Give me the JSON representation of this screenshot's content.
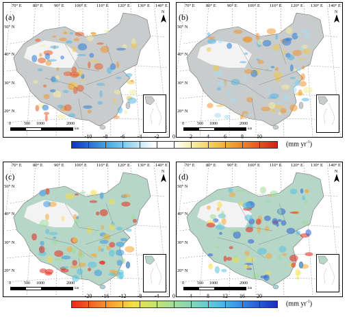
{
  "panels": {
    "a": {
      "label": "(a)"
    },
    "b": {
      "label": "(b)"
    },
    "c": {
      "label": "(c)"
    },
    "d": {
      "label": "(d)"
    }
  },
  "longitudes": [
    "70° E",
    "80° E",
    "90° E",
    "100° E",
    "110° E",
    "120° E",
    "130° E",
    "140° E"
  ],
  "latitudes": [
    "50° N",
    "40° N",
    "30° N",
    "20° N"
  ],
  "north_label": "N",
  "scale_bar": {
    "ticks": [
      "0",
      "500",
      "1000",
      "2000"
    ],
    "unit": "km"
  },
  "colorbar_top": {
    "ticks": [
      "-10",
      "-8",
      "-6",
      "-4",
      "-2",
      "0",
      "2",
      "4",
      "6",
      "8",
      "10"
    ],
    "unit": "(mm yr",
    "unit_exp": "-1",
    "unit_close": ")",
    "colors": [
      "#1030c8",
      "#2a7bd8",
      "#55b7e6",
      "#a6dcf0",
      "#ffffff",
      "#ffffff",
      "#f6eb9e",
      "#f2c648",
      "#f09530",
      "#e85c24",
      "#d41e16"
    ]
  },
  "colorbar_bottom": {
    "ticks": [
      "-20",
      "-16",
      "-12",
      "-8",
      "-4",
      "0",
      "4",
      "8",
      "12",
      "16",
      "20"
    ],
    "unit": "(mm yr",
    "unit_exp": "-1",
    "unit_close": ")",
    "colors": [
      "#e8281c",
      "#f06a28",
      "#f8a634",
      "#f4de46",
      "#c6e46e",
      "#9edc9a",
      "#7cd4bc",
      "#58c2e2",
      "#3c98e6",
      "#2a60d6",
      "#1a2ebe"
    ]
  },
  "colors": {
    "land": "#c9cccc",
    "desert": "#f3f3f3",
    "border": "#6e6e6e"
  }
}
